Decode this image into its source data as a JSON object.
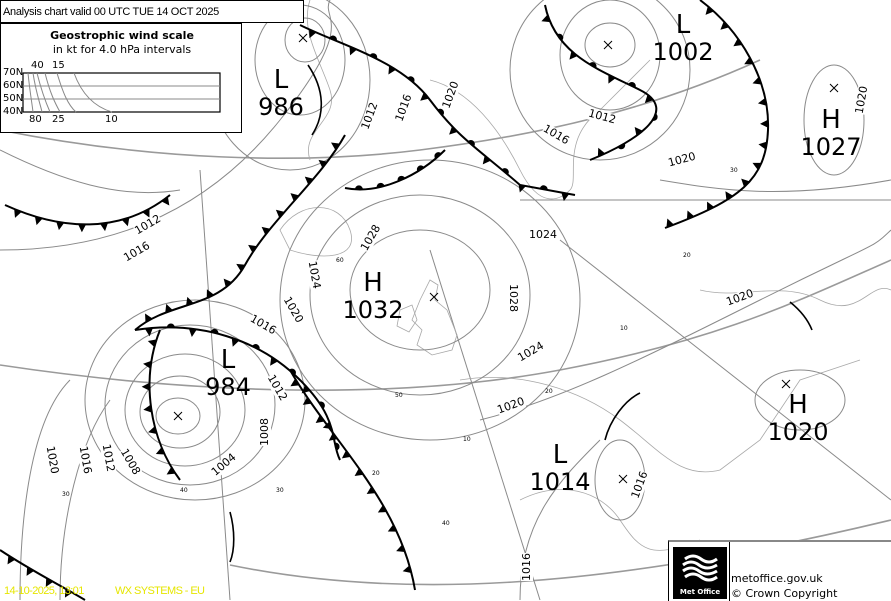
{
  "header": {
    "title": "Analysis chart valid 00 UTC TUE 14  OCT 2025"
  },
  "wind_scale": {
    "title": "Geostrophic wind scale",
    "subtitle": "in kt for 4.0 hPa intervals",
    "latitudes": [
      "70N",
      "60N",
      "50N",
      "40N"
    ],
    "top_labels": [
      "40",
      "15"
    ],
    "bottom_labels": [
      "80",
      "25",
      "10"
    ]
  },
  "pressure_centres": [
    {
      "type": "L",
      "value": "986"
    },
    {
      "type": "L",
      "value": "1002"
    },
    {
      "type": "H",
      "value": "1027"
    },
    {
      "type": "H",
      "value": "1032"
    },
    {
      "type": "L",
      "value": "984"
    },
    {
      "type": "H",
      "value": "1020"
    },
    {
      "type": "L",
      "value": "1014"
    }
  ],
  "isobar_labels": [
    "1012",
    "1016",
    "1020",
    "1012",
    "1016",
    "1020",
    "1020",
    "1012",
    "1016",
    "1028",
    "1024",
    "1028",
    "1024",
    "1024",
    "1020",
    "1016",
    "1020",
    "1012",
    "1008",
    "1004",
    "1008",
    "1012",
    "1016",
    "1020",
    "1020",
    "1016",
    "1016"
  ],
  "latitude_labels": [
    "60",
    "50",
    "40",
    "30",
    "20",
    "10",
    "40",
    "30",
    "20",
    "10",
    "20",
    "30"
  ],
  "footer": {
    "stamp_time": "14-10-2025, 13:01",
    "stamp_product": "WX SYSTEMS - EU",
    "logo_text": "Met Office",
    "site": "metoffice.gov.uk",
    "copyright": "© Crown Copyright"
  },
  "colors": {
    "fronts": "#000000",
    "isobars": "#8a8a8a",
    "stamp": "#e6e600"
  }
}
